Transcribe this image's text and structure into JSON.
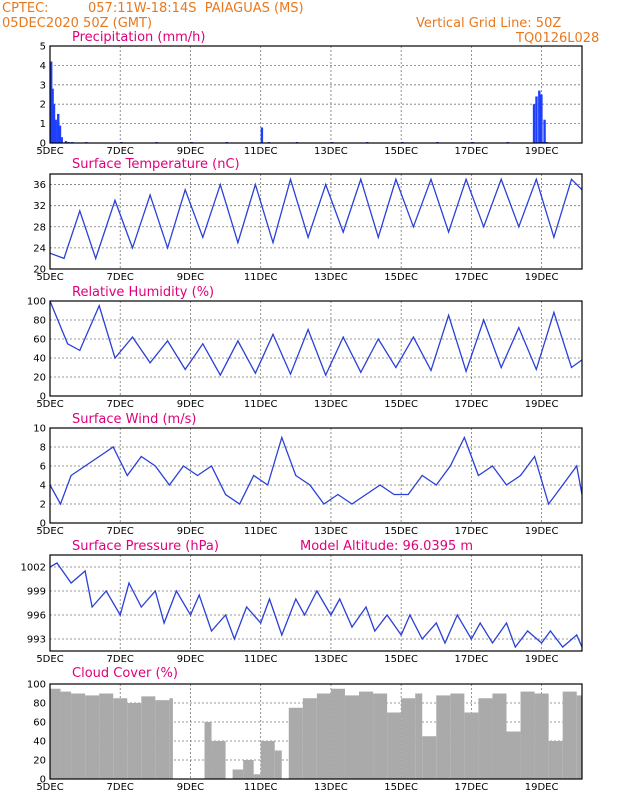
{
  "header": {
    "source": "CPTEC:",
    "location": "057:11W-18:14S  PAIAGUAS (MS)",
    "run": "05DEC2020 50Z (GMT)",
    "grid_note": "Vertical Grid Line: 50Z",
    "model": "TQ0126L028"
  },
  "chart_data": [
    {
      "type": "bar",
      "title": "Precipitation (mm/h)",
      "ylim": [
        0,
        5
      ],
      "yticks": [
        0,
        1,
        2,
        3,
        4,
        5
      ],
      "xticks": [
        "5DEC",
        "7DEC",
        "9DEC",
        "11DEC",
        "13DEC",
        "15DEC",
        "17DEC",
        "19DEC"
      ],
      "color": "#1f3fff",
      "x_days": [
        0.0,
        0.04,
        0.08,
        0.13,
        0.2,
        0.25,
        0.3,
        0.42,
        0.5,
        0.6,
        1.0,
        2.0,
        3.0,
        4.0,
        5.0,
        6.0,
        6.2,
        7.0,
        8.0,
        9.0,
        10.0,
        11.0,
        12.0,
        13.0,
        14.0,
        13.75,
        13.82,
        13.9,
        13.96,
        14.05,
        14.1
      ],
      "values": [
        4.2,
        2.8,
        2.0,
        1.2,
        1.5,
        0.9,
        0.3,
        0.1,
        0.05,
        0.05,
        0.05,
        0.05,
        0.05,
        0.05,
        0.05,
        0.8,
        0.05,
        0.05,
        0.05,
        0.05,
        0.05,
        0.05,
        0.05,
        0.05,
        0.05,
        2.0,
        2.4,
        2.7,
        2.5,
        1.2,
        0.05
      ]
    },
    {
      "type": "line",
      "title": "Surface Temperature (nC)",
      "ylim": [
        20,
        38
      ],
      "yticks": [
        20,
        24,
        28,
        32,
        36
      ],
      "xticks": [
        "5DEC",
        "7DEC",
        "9DEC",
        "11DEC",
        "13DEC",
        "15DEC",
        "17DEC",
        "19DEC"
      ],
      "color": "#2a40d8",
      "x_days": [
        0,
        0.4,
        0.85,
        1.3,
        1.85,
        2.35,
        2.85,
        3.35,
        3.85,
        4.35,
        4.85,
        5.35,
        5.85,
        6.35,
        6.85,
        7.35,
        7.85,
        8.35,
        8.85,
        9.35,
        9.85,
        10.35,
        10.85,
        11.35,
        11.85,
        12.35,
        12.85,
        13.35,
        13.85,
        14.35,
        14.85,
        15.15
      ],
      "values": [
        23,
        22,
        31,
        22,
        33,
        24,
        34,
        24,
        35,
        26,
        36,
        25,
        36,
        25,
        37,
        26,
        36,
        27,
        37,
        26,
        37,
        28,
        37,
        27,
        37,
        28,
        37,
        28,
        37,
        26,
        37,
        35
      ]
    },
    {
      "type": "line",
      "title": "Relative Humidity (%)",
      "ylim": [
        0,
        100
      ],
      "yticks": [
        0,
        20,
        40,
        60,
        80,
        100
      ],
      "xticks": [
        "5DEC",
        "7DEC",
        "9DEC",
        "11DEC",
        "13DEC",
        "15DEC",
        "17DEC",
        "19DEC"
      ],
      "color": "#2a40d8",
      "x_days": [
        0,
        0.5,
        0.85,
        1.4,
        1.85,
        2.35,
        2.85,
        3.35,
        3.85,
        4.35,
        4.85,
        5.35,
        5.85,
        6.35,
        6.85,
        7.35,
        7.85,
        8.35,
        8.85,
        9.35,
        9.85,
        10.35,
        10.85,
        11.35,
        11.85,
        12.35,
        12.85,
        13.35,
        13.85,
        14.35,
        14.85,
        15.15
      ],
      "values": [
        100,
        55,
        48,
        95,
        40,
        62,
        35,
        58,
        28,
        55,
        22,
        58,
        24,
        65,
        23,
        70,
        22,
        62,
        25,
        60,
        30,
        62,
        27,
        85,
        26,
        80,
        30,
        72,
        28,
        88,
        30,
        38
      ]
    },
    {
      "type": "line",
      "title": "Surface Wind (m/s)",
      "ylim": [
        0,
        10
      ],
      "yticks": [
        0,
        2,
        4,
        6,
        8,
        10
      ],
      "xticks": [
        "5DEC",
        "7DEC",
        "9DEC",
        "11DEC",
        "13DEC",
        "15DEC",
        "17DEC",
        "19DEC"
      ],
      "color": "#2a40d8",
      "x_days": [
        0,
        0.3,
        0.6,
        1.0,
        1.4,
        1.8,
        2.2,
        2.6,
        3.0,
        3.4,
        3.8,
        4.2,
        4.6,
        5.0,
        5.4,
        5.8,
        6.2,
        6.6,
        7.0,
        7.4,
        7.8,
        8.2,
        8.6,
        9.0,
        9.4,
        9.8,
        10.2,
        10.6,
        11.0,
        11.4,
        11.8,
        12.2,
        12.6,
        13.0,
        13.4,
        13.8,
        14.2,
        14.6,
        15.0,
        15.15
      ],
      "values": [
        4,
        2,
        5,
        6,
        7,
        8,
        5,
        7,
        6,
        4,
        6,
        5,
        6,
        3,
        2,
        5,
        4,
        9,
        5,
        4,
        2,
        3,
        2,
        3,
        4,
        3,
        3,
        5,
        4,
        6,
        9,
        5,
        6,
        4,
        5,
        7,
        2,
        4,
        6,
        3
      ]
    },
    {
      "type": "line",
      "title": "Surface Pressure (hPa)",
      "annotation": "Model Altitude: 96.0395 m",
      "ylim": [
        991.5,
        1003.5
      ],
      "yticks": [
        993,
        996,
        999,
        1002
      ],
      "xticks": [
        "5DEC",
        "7DEC",
        "9DEC",
        "11DEC",
        "13DEC",
        "15DEC",
        "17DEC",
        "19DEC"
      ],
      "color": "#2a40d8",
      "x_days": [
        0,
        0.2,
        0.6,
        1.0,
        1.2,
        1.6,
        2.0,
        2.25,
        2.6,
        3.0,
        3.25,
        3.6,
        4.0,
        4.25,
        4.6,
        5.0,
        5.25,
        5.6,
        6.0,
        6.25,
        6.6,
        7.0,
        7.25,
        7.6,
        8.0,
        8.25,
        8.6,
        9.0,
        9.25,
        9.6,
        10.0,
        10.25,
        10.6,
        11.0,
        11.25,
        11.6,
        12.0,
        12.25,
        12.6,
        13.0,
        13.25,
        13.6,
        14.0,
        14.25,
        14.6,
        15.0,
        15.15
      ],
      "values": [
        1002,
        1002.5,
        1000,
        1001.5,
        997,
        999,
        996,
        1000,
        997,
        999,
        995,
        999,
        996,
        998.5,
        994,
        996,
        993,
        997,
        995,
        998,
        993.5,
        998,
        996,
        999,
        996,
        998,
        994.5,
        997,
        994,
        996,
        993.5,
        996,
        993,
        995,
        992.5,
        996,
        993,
        995,
        992.5,
        995,
        992,
        994,
        992.5,
        994,
        992,
        993.5,
        992
      ]
    },
    {
      "type": "area",
      "title": "Cloud Cover (%)",
      "ylim": [
        0,
        100
      ],
      "yticks": [
        0,
        20,
        40,
        60,
        80,
        100
      ],
      "xticks": [
        "5DEC",
        "7DEC",
        "9DEC",
        "11DEC",
        "13DEC",
        "15DEC",
        "17DEC",
        "19DEC"
      ],
      "color": "#aaaaaa",
      "x_days": [
        0,
        0.3,
        0.6,
        1.0,
        1.4,
        1.8,
        2.2,
        2.6,
        3.0,
        3.4,
        3.5,
        4.0,
        4.4,
        4.6,
        5.0,
        5.2,
        5.5,
        5.8,
        6.0,
        6.4,
        6.6,
        6.8,
        7.2,
        7.6,
        8.0,
        8.4,
        8.8,
        9.2,
        9.6,
        10.0,
        10.4,
        10.6,
        11.0,
        11.4,
        11.8,
        12.2,
        12.6,
        13.0,
        13.4,
        13.8,
        14.2,
        14.6,
        15.0,
        15.15
      ],
      "values": [
        95,
        92,
        90,
        88,
        90,
        85,
        80,
        87,
        83,
        85,
        0,
        0,
        60,
        40,
        0,
        10,
        20,
        5,
        40,
        30,
        0,
        75,
        85,
        90,
        95,
        88,
        92,
        90,
        70,
        85,
        90,
        45,
        88,
        90,
        70,
        85,
        90,
        50,
        92,
        90,
        40,
        92,
        88,
        90
      ]
    }
  ]
}
